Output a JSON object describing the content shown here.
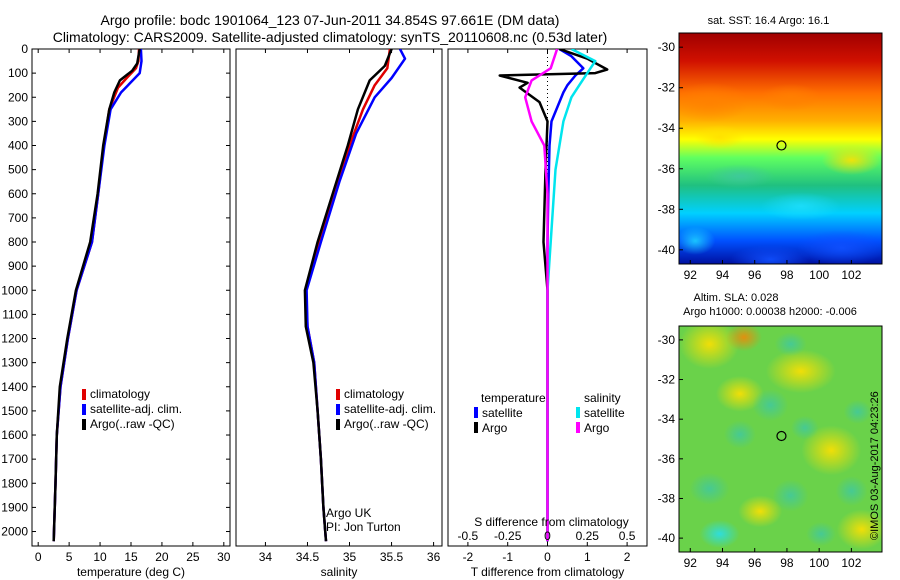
{
  "header": {
    "line1": "Argo profile: bodc 1901064_123 07-Jun-2011 34.854S 97.661E (DM data)",
    "line2": "Climatology: CARS2009. Satellite-adjusted climatology: synTS_20110608.nc (0.53d later)"
  },
  "colors": {
    "clim": "#e00000",
    "sat": "#0000ff",
    "argo": "#000000",
    "sal_sat": "#00e5ee",
    "sal_argo": "#ff00ff"
  },
  "chart_data": [
    {
      "type": "line",
      "xlabel": "temperature (deg C)",
      "xlim": [
        -1,
        31
      ],
      "ylim": [
        2060,
        0
      ],
      "x_ticks": [
        0,
        5,
        10,
        15,
        20,
        25,
        30
      ],
      "y_ticks": [
        0,
        100,
        200,
        300,
        400,
        500,
        600,
        700,
        800,
        900,
        1000,
        1100,
        1200,
        1300,
        1400,
        1500,
        1600,
        1700,
        1800,
        1900,
        2000
      ],
      "legend": [
        "climatology",
        "satellite-adj. clim.",
        "Argo(..raw -QC)"
      ],
      "series": [
        {
          "name": "climatology",
          "color": "clim",
          "points": [
            [
              16.3,
              0
            ],
            [
              16.2,
              50
            ],
            [
              15.8,
              80
            ],
            [
              14.3,
              120
            ],
            [
              12.9,
              160
            ],
            [
              11.5,
              250
            ],
            [
              10.6,
              400
            ],
            [
              9.7,
              600
            ],
            [
              8.7,
              800
            ],
            [
              6.2,
              1000
            ],
            [
              4.8,
              1200
            ],
            [
              3.6,
              1400
            ],
            [
              3.0,
              1600
            ],
            [
              2.8,
              1800
            ],
            [
              2.5,
              2040
            ]
          ]
        },
        {
          "name": "satellite-adj. clim.",
          "color": "sat",
          "points": [
            [
              16.6,
              0
            ],
            [
              16.7,
              50
            ],
            [
              16.4,
              100
            ],
            [
              14.9,
              140
            ],
            [
              13.4,
              180
            ],
            [
              11.7,
              250
            ],
            [
              10.7,
              400
            ],
            [
              9.7,
              600
            ],
            [
              8.7,
              800
            ],
            [
              6.2,
              1000
            ],
            [
              4.8,
              1200
            ],
            [
              3.6,
              1400
            ],
            [
              3.0,
              1600
            ],
            [
              2.8,
              1800
            ],
            [
              2.5,
              2040
            ]
          ]
        },
        {
          "name": "Argo(..raw -QC)",
          "color": "argo",
          "points": [
            [
              16.4,
              0
            ],
            [
              16.0,
              60
            ],
            [
              15.2,
              90
            ],
            [
              13.2,
              130
            ],
            [
              12.3,
              180
            ],
            [
              11.5,
              250
            ],
            [
              10.5,
              400
            ],
            [
              9.6,
              600
            ],
            [
              8.4,
              800
            ],
            [
              6.1,
              1000
            ],
            [
              4.7,
              1200
            ],
            [
              3.5,
              1400
            ],
            [
              3.0,
              1600
            ],
            [
              2.8,
              1800
            ],
            [
              2.5,
              2040
            ]
          ]
        }
      ]
    },
    {
      "type": "line",
      "xlabel": "salinity",
      "xlim": [
        33.65,
        36.1
      ],
      "ylim": [
        2060,
        0
      ],
      "x_ticks": [
        34,
        34.5,
        35,
        35.5,
        36
      ],
      "x_tick_labels": [
        "34",
        "34.5",
        "35",
        "35.5",
        "36"
      ],
      "legend": [
        "climatology",
        "satellite-adj. clim.",
        "Argo(..raw -QC)"
      ],
      "annotation": [
        "Argo UK",
        "PI: Jon Turton"
      ],
      "series": [
        {
          "name": "climatology",
          "color": "clim",
          "points": [
            [
              35.48,
              0
            ],
            [
              35.45,
              80
            ],
            [
              35.3,
              150
            ],
            [
              35.16,
              250
            ],
            [
              35.0,
              400
            ],
            [
              34.83,
              600
            ],
            [
              34.64,
              800
            ],
            [
              34.48,
              1000
            ],
            [
              34.5,
              1150
            ],
            [
              34.58,
              1300
            ],
            [
              34.62,
              1500
            ],
            [
              34.66,
              1700
            ],
            [
              34.69,
              1900
            ],
            [
              34.72,
              2040
            ]
          ]
        },
        {
          "name": "satellite-adj. clim.",
          "color": "sat",
          "points": [
            [
              35.6,
              0
            ],
            [
              35.66,
              40
            ],
            [
              35.5,
              120
            ],
            [
              35.3,
              200
            ],
            [
              35.08,
              350
            ],
            [
              34.88,
              550
            ],
            [
              34.66,
              800
            ],
            [
              34.49,
              1000
            ],
            [
              34.5,
              1150
            ],
            [
              34.58,
              1300
            ],
            [
              34.62,
              1500
            ],
            [
              34.66,
              1700
            ],
            [
              34.69,
              1900
            ],
            [
              34.72,
              2040
            ]
          ]
        },
        {
          "name": "Argo(..raw -QC)",
          "color": "argo",
          "points": [
            [
              35.5,
              0
            ],
            [
              35.42,
              70
            ],
            [
              35.24,
              130
            ],
            [
              35.1,
              250
            ],
            [
              34.98,
              400
            ],
            [
              34.8,
              600
            ],
            [
              34.62,
              800
            ],
            [
              34.47,
              1000
            ],
            [
              34.48,
              1150
            ],
            [
              34.57,
              1300
            ],
            [
              34.62,
              1500
            ],
            [
              34.66,
              1700
            ],
            [
              34.69,
              1900
            ],
            [
              34.72,
              2040
            ]
          ]
        }
      ]
    },
    {
      "type": "line",
      "xlabel": "T difference from climatology",
      "xlabel2": "S difference from climatology",
      "xlim": [
        -2.5,
        2.5
      ],
      "ylim": [
        2060,
        0
      ],
      "x_ticks": [
        -2,
        -1,
        0,
        1,
        2
      ],
      "x_tick_labels": [
        "-2",
        "-1",
        "0",
        "1",
        "2"
      ],
      "s_ticks": [
        -0.5,
        -0.25,
        0,
        0.25,
        0.5
      ],
      "s_tick_labels": [
        "-0.5",
        "-0.25",
        "0",
        "0.25",
        "0.5"
      ],
      "legend_temperature_title": "temperature",
      "legend_salinity_title": "salinity",
      "legend": [
        "satellite",
        "Argo",
        "satellite",
        "Argo"
      ],
      "series": [
        {
          "name": "satellite",
          "group": "temperature",
          "color": "sat",
          "points": [
            [
              0.3,
              0
            ],
            [
              0.6,
              30
            ],
            [
              0.9,
              80
            ],
            [
              0.7,
              110
            ],
            [
              0.5,
              150
            ],
            [
              0.4,
              180
            ],
            [
              0.3,
              220
            ],
            [
              0.1,
              300
            ],
            [
              0.05,
              400
            ],
            [
              0.02,
              600
            ],
            [
              0,
              800
            ],
            [
              0,
              1000
            ],
            [
              0,
              1500
            ],
            [
              0,
              2040
            ]
          ]
        },
        {
          "name": "Argo",
          "group": "temperature",
          "color": "argo",
          "points": [
            [
              0.3,
              0
            ],
            [
              1.0,
              40
            ],
            [
              1.5,
              85
            ],
            [
              1.2,
              100
            ],
            [
              -1.2,
              110
            ],
            [
              -0.5,
              140
            ],
            [
              -0.7,
              160
            ],
            [
              -0.2,
              220
            ],
            [
              0,
              300
            ],
            [
              -0.05,
              500
            ],
            [
              -0.1,
              800
            ],
            [
              -0.05,
              900
            ],
            [
              0,
              1000
            ],
            [
              0,
              1500
            ],
            [
              0,
              2040
            ]
          ]
        },
        {
          "name": "satellite",
          "group": "salinity",
          "color": "sal_sat",
          "points": [
            [
              0.15,
              0
            ],
            [
              0.3,
              50
            ],
            [
              0.25,
              100
            ],
            [
              0.2,
              150
            ],
            [
              0.15,
              200
            ],
            [
              0.1,
              300
            ],
            [
              0.05,
              500
            ],
            [
              0.02,
              800
            ],
            [
              0,
              1000
            ],
            [
              0,
              1500
            ],
            [
              0,
              2040
            ]
          ]
        },
        {
          "name": "Argo",
          "group": "salinity",
          "color": "sal_argo",
          "points": [
            [
              0.06,
              0
            ],
            [
              0.02,
              80
            ],
            [
              -0.1,
              130
            ],
            [
              -0.14,
              200
            ],
            [
              -0.1,
              300
            ],
            [
              -0.02,
              400
            ],
            [
              0,
              600
            ],
            [
              0,
              1000
            ],
            [
              0,
              1500
            ],
            [
              0,
              2040
            ]
          ]
        }
      ]
    },
    {
      "type": "heatmap",
      "title": "sat. SST: 16.4  Argo: 16.1",
      "x_ticks": [
        92,
        94,
        96,
        98,
        100,
        102
      ],
      "y_ticks": [
        -30,
        -32,
        -34,
        -36,
        -38,
        -40
      ],
      "xlim": [
        91.3,
        103.9
      ],
      "ylim": [
        -40.7,
        -29.3
      ],
      "marker": [
        97.66,
        -34.85
      ],
      "colormap": "jet"
    },
    {
      "type": "heatmap",
      "title": "Altim. SLA: 0.028",
      "subtitle": "Argo h1000: 0.00038  h2000: -0.006",
      "x_ticks": [
        92,
        94,
        96,
        98,
        100,
        102
      ],
      "y_ticks": [
        -30,
        -32,
        -34,
        -36,
        -38,
        -40
      ],
      "xlim": [
        91.3,
        103.9
      ],
      "ylim": [
        -40.7,
        -29.3
      ],
      "marker": [
        97.66,
        -34.85
      ],
      "colormap": "jet"
    }
  ],
  "credit": "©IMOS 03-Aug-2017 04:23:26"
}
